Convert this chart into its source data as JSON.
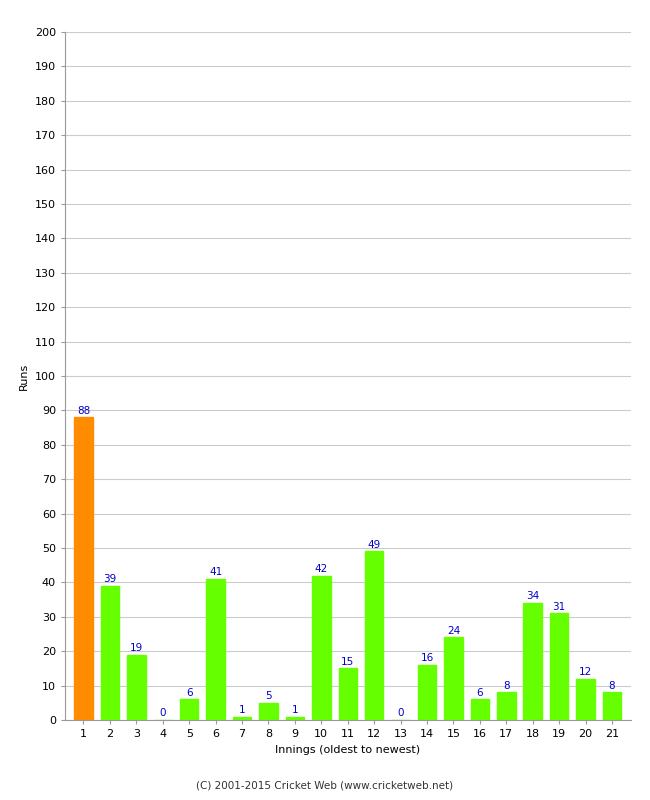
{
  "title": "",
  "xlabel": "Innings (oldest to newest)",
  "ylabel": "Runs",
  "categories": [
    1,
    2,
    3,
    4,
    5,
    6,
    7,
    8,
    9,
    10,
    11,
    12,
    13,
    14,
    15,
    16,
    17,
    18,
    19,
    20,
    21
  ],
  "values": [
    88,
    39,
    19,
    0,
    6,
    41,
    1,
    5,
    1,
    42,
    15,
    49,
    0,
    16,
    24,
    6,
    8,
    34,
    31,
    12,
    8
  ],
  "bar_colors": [
    "#ff8c00",
    "#66ff00",
    "#66ff00",
    "#66ff00",
    "#66ff00",
    "#66ff00",
    "#66ff00",
    "#66ff00",
    "#66ff00",
    "#66ff00",
    "#66ff00",
    "#66ff00",
    "#66ff00",
    "#66ff00",
    "#66ff00",
    "#66ff00",
    "#66ff00",
    "#66ff00",
    "#66ff00",
    "#66ff00",
    "#66ff00"
  ],
  "ylim": [
    0,
    200
  ],
  "yticks": [
    0,
    10,
    20,
    30,
    40,
    50,
    60,
    70,
    80,
    90,
    100,
    110,
    120,
    130,
    140,
    150,
    160,
    170,
    180,
    190,
    200
  ],
  "label_color": "#0000cc",
  "label_fontsize": 7.5,
  "axis_fontsize": 8,
  "ylabel_fontsize": 8,
  "background_color": "#ffffff",
  "grid_color": "#cccccc",
  "footer": "(C) 2001-2015 Cricket Web (www.cricketweb.net)"
}
